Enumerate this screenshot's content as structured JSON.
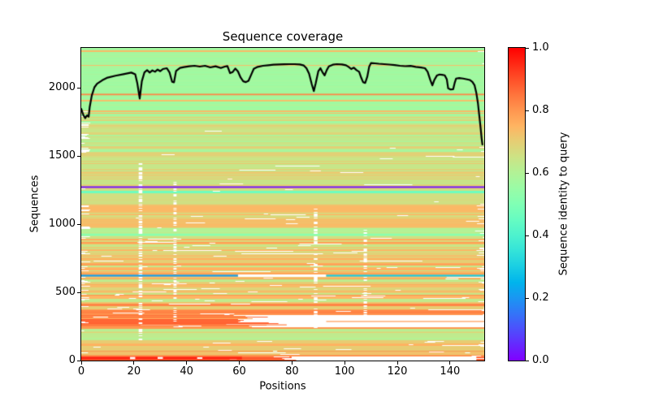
{
  "chart_data": {
    "type": "heatmap",
    "title": "Sequence coverage",
    "xlabel": "Positions",
    "ylabel": "Sequences",
    "xlim": [
      0,
      153
    ],
    "ylim": [
      0,
      2293
    ],
    "xticks": [
      0,
      20,
      40,
      60,
      80,
      100,
      120,
      140
    ],
    "yticks": [
      0,
      500,
      1000,
      1500,
      2000
    ],
    "grid": false,
    "colorbar": {
      "label": "Sequence identity to query",
      "ticks": [
        {
          "v": 1.0,
          "label": "1.0"
        },
        {
          "v": 0.8,
          "label": "0.8"
        },
        {
          "v": 0.6,
          "label": "0.6"
        },
        {
          "v": 0.4,
          "label": "0.4"
        },
        {
          "v": 0.2,
          "label": "0.2"
        },
        {
          "v": 0.0,
          "label": "0.0"
        }
      ]
    },
    "colormap_name": "rainbow_r",
    "colormap_stops": [
      [
        0.0,
        "#ff0000"
      ],
      [
        0.05,
        "#ff2814"
      ],
      [
        0.1,
        "#ff4f28"
      ],
      [
        0.15,
        "#ff743c"
      ],
      [
        0.2,
        "#ff964f"
      ],
      [
        0.25,
        "#ffb462"
      ],
      [
        0.3,
        "#e5ce74"
      ],
      [
        0.35,
        "#cce385"
      ],
      [
        0.4,
        "#b2f296"
      ],
      [
        0.45,
        "#99fca6"
      ],
      [
        0.5,
        "#80ffb4"
      ],
      [
        0.55,
        "#66fcc2"
      ],
      [
        0.6,
        "#4df2ce"
      ],
      [
        0.65,
        "#33e3d9"
      ],
      [
        0.7,
        "#1acee3"
      ],
      [
        0.75,
        "#00b4ec"
      ],
      [
        0.8,
        "#1a96f2"
      ],
      [
        0.85,
        "#3374f8"
      ],
      [
        0.9,
        "#4d4ffc"
      ],
      [
        0.95,
        "#6628fe"
      ],
      [
        1.0,
        "#8000ff"
      ]
    ],
    "coverage_line": {
      "color": "#000000",
      "width": 2.2,
      "points": [
        [
          0,
          1846
        ],
        [
          0.8,
          1800
        ],
        [
          1.5,
          1778
        ],
        [
          2.2,
          1798
        ],
        [
          2.8,
          1788
        ],
        [
          3.2,
          1858
        ],
        [
          4,
          1944
        ],
        [
          5,
          2004
        ],
        [
          6,
          2030
        ],
        [
          8,
          2056
        ],
        [
          10,
          2075
        ],
        [
          13,
          2089
        ],
        [
          16,
          2100
        ],
        [
          19,
          2112
        ],
        [
          20.5,
          2100
        ],
        [
          21.3,
          2032
        ],
        [
          22.2,
          1922
        ],
        [
          23,
          2048
        ],
        [
          24,
          2114
        ],
        [
          25,
          2130
        ],
        [
          26,
          2112
        ],
        [
          27,
          2128
        ],
        [
          28,
          2118
        ],
        [
          29,
          2134
        ],
        [
          30,
          2122
        ],
        [
          31,
          2138
        ],
        [
          32.5,
          2144
        ],
        [
          33.5,
          2114
        ],
        [
          34.5,
          2044
        ],
        [
          35.2,
          2040
        ],
        [
          36,
          2124
        ],
        [
          37.5,
          2146
        ],
        [
          39,
          2152
        ],
        [
          41,
          2158
        ],
        [
          43,
          2162
        ],
        [
          45,
          2156
        ],
        [
          47,
          2162
        ],
        [
          49,
          2150
        ],
        [
          51,
          2158
        ],
        [
          53,
          2146
        ],
        [
          54.5,
          2156
        ],
        [
          55.5,
          2160
        ],
        [
          56.5,
          2108
        ],
        [
          57.5,
          2116
        ],
        [
          58.5,
          2142
        ],
        [
          59.5,
          2120
        ],
        [
          60.5,
          2076
        ],
        [
          61.5,
          2048
        ],
        [
          62.5,
          2042
        ],
        [
          63.5,
          2052
        ],
        [
          64.5,
          2096
        ],
        [
          65.5,
          2140
        ],
        [
          67,
          2154
        ],
        [
          69,
          2162
        ],
        [
          71,
          2166
        ],
        [
          73,
          2170
        ],
        [
          75,
          2172
        ],
        [
          77,
          2173
        ],
        [
          79,
          2174
        ],
        [
          81,
          2174
        ],
        [
          83,
          2172
        ],
        [
          84.5,
          2164
        ],
        [
          85.5,
          2144
        ],
        [
          86.5,
          2104
        ],
        [
          87.5,
          2028
        ],
        [
          88.3,
          1976
        ],
        [
          89,
          2032
        ],
        [
          90,
          2122
        ],
        [
          90.8,
          2144
        ],
        [
          91.6,
          2114
        ],
        [
          92.4,
          2092
        ],
        [
          93.2,
          2130
        ],
        [
          94,
          2158
        ],
        [
          95.5,
          2170
        ],
        [
          97,
          2174
        ],
        [
          99,
          2172
        ],
        [
          100.5,
          2166
        ],
        [
          101.5,
          2154
        ],
        [
          102.5,
          2138
        ],
        [
          103.5,
          2148
        ],
        [
          104.5,
          2130
        ],
        [
          105.5,
          2118
        ],
        [
          106.3,
          2074
        ],
        [
          107,
          2042
        ],
        [
          107.8,
          2036
        ],
        [
          108.6,
          2082
        ],
        [
          109.3,
          2154
        ],
        [
          110,
          2182
        ],
        [
          111.5,
          2180
        ],
        [
          113,
          2177
        ],
        [
          115,
          2174
        ],
        [
          117,
          2171
        ],
        [
          119,
          2167
        ],
        [
          121,
          2162
        ],
        [
          123,
          2159
        ],
        [
          125,
          2161
        ],
        [
          127,
          2154
        ],
        [
          129,
          2149
        ],
        [
          130.5,
          2144
        ],
        [
          131.5,
          2118
        ],
        [
          132.5,
          2058
        ],
        [
          133.3,
          2018
        ],
        [
          134,
          2056
        ],
        [
          135,
          2090
        ],
        [
          136,
          2098
        ],
        [
          137,
          2096
        ],
        [
          138,
          2092
        ],
        [
          138.8,
          2062
        ],
        [
          139.3,
          1996
        ],
        [
          140.2,
          1988
        ],
        [
          141.2,
          1990
        ],
        [
          141.8,
          2038
        ],
        [
          142.3,
          2068
        ],
        [
          143.5,
          2072
        ],
        [
          145,
          2068
        ],
        [
          146.5,
          2062
        ],
        [
          147.5,
          2058
        ],
        [
          148.5,
          2044
        ],
        [
          149.3,
          2020
        ],
        [
          150,
          1962
        ],
        [
          150.6,
          1888
        ],
        [
          151.1,
          1800
        ],
        [
          151.6,
          1710
        ],
        [
          152,
          1630
        ],
        [
          152.3,
          1585
        ]
      ]
    },
    "msa": {
      "seed": 42,
      "bands": [
        {
          "y": [
            0,
            8
          ],
          "id": 0.18,
          "noise": 0.03,
          "altProb": 0,
          "altId": 0.2,
          "dash": 0.1,
          "left": 0,
          "right": 0
        },
        {
          "y": [
            8,
            30
          ],
          "id": 0.15,
          "noise": 0.04,
          "altProb": 0,
          "altId": 0.2,
          "dash": 0.3,
          "left": 0,
          "right": 0
        },
        {
          "y": [
            30,
            150
          ],
          "id": 0.27,
          "noise": 0.05,
          "altProb": 0.3,
          "altId": 0.21,
          "dash": 0.3,
          "left": 0.05,
          "right": 0.08
        },
        {
          "y": [
            150,
            245
          ],
          "id": 0.38,
          "noise": 0.02,
          "altProb": 0.05,
          "altId": 0.32,
          "dash": 0.1,
          "left": 0.03,
          "right": 0.05
        },
        {
          "y": [
            245,
            332
          ],
          "id": 0.16,
          "noise": 0.05,
          "altProb": 0.1,
          "altId": 0.22,
          "dash": 0.25,
          "left": 0.05,
          "right": 0
        },
        {
          "y": [
            332,
            420
          ],
          "id": 0.21,
          "noise": 0.04,
          "altProb": 0.12,
          "altId": 0.3,
          "dash": 0.35,
          "left": 0.08,
          "right": 0.1
        },
        {
          "y": [
            420,
            520
          ],
          "id": 0.24,
          "noise": 0.06,
          "altProb": 0.15,
          "altId": 0.35,
          "dash": 0.4,
          "left": 0.3,
          "right": 0.12
        },
        {
          "y": [
            520,
            615
          ],
          "id": 0.27,
          "noise": 0.06,
          "altProb": 0.2,
          "altId": 0.36,
          "dash": 0.25,
          "left": 0.15,
          "right": 0.12
        },
        {
          "y": [
            615,
            627
          ],
          "id": 0.3,
          "noise": 0.05,
          "altProb": 0,
          "altId": 0.3,
          "dash": 0.3,
          "left": 0,
          "right": 0
        },
        {
          "y": [
            627,
            900
          ],
          "id": 0.27,
          "noise": 0.06,
          "altProb": 0.15,
          "altId": 0.36,
          "dash": 0.28,
          "left": 0.12,
          "right": 0.15
        },
        {
          "y": [
            900,
            940
          ],
          "id": 0.4,
          "noise": 0.03,
          "altProb": 0.1,
          "altId": 0.33,
          "dash": 0.12,
          "left": 0.1,
          "right": 0.1
        },
        {
          "y": [
            940,
            1180
          ],
          "id": 0.3,
          "noise": 0.05,
          "altProb": 0.12,
          "altId": 0.38,
          "dash": 0.18,
          "left": 0.12,
          "right": 0.12
        },
        {
          "y": [
            1180,
            1250
          ],
          "id": 0.33,
          "noise": 0.04,
          "altProb": 0.2,
          "altId": 0.55,
          "dash": 0.15,
          "left": 0.08,
          "right": 0.15
        },
        {
          "y": [
            1250,
            1264
          ],
          "id": 0.33,
          "noise": 0.04,
          "altProb": 0,
          "altId": 0.3,
          "dash": 0.6,
          "left": 0.2,
          "right": 0.2
        },
        {
          "y": [
            1264,
            1280
          ],
          "id": 0.33,
          "noise": 0.03,
          "altProb": 0,
          "altId": 0.3,
          "dash": 0.1,
          "left": 0,
          "right": 0
        },
        {
          "y": [
            1280,
            1500
          ],
          "id": 0.32,
          "noise": 0.05,
          "altProb": 0.15,
          "altId": 0.4,
          "dash": 0.15,
          "left": 0.08,
          "right": 0.1
        },
        {
          "y": [
            1500,
            1790
          ],
          "id": 0.34,
          "noise": 0.04,
          "altProb": 0.4,
          "altId": 0.42,
          "dash": 0.14,
          "left": 0.2,
          "right": 0.08
        },
        {
          "y": [
            1790,
            2293
          ],
          "id": 0.43,
          "noise": 0.015,
          "altProb": 0.06,
          "altId": 0.26,
          "dash": 0.04,
          "left": 0.02,
          "right": 0.03
        }
      ],
      "white_regions": [
        {
          "y": [
            245,
            332
          ],
          "x": [
            64,
            153
          ],
          "jitter": 12
        },
        {
          "y": [
            616,
            629
          ],
          "x": [
            59.5,
            93
          ],
          "jitter": 0
        },
        {
          "y": [
            2,
            26
          ],
          "x": [
            79,
            150
          ],
          "jitter": 4
        }
      ],
      "gap_columns": [
        {
          "x": [
            21.8,
            23.2
          ],
          "y": [
            150,
            1460
          ],
          "p": 0.5
        },
        {
          "x": [
            35.0,
            36.2
          ],
          "y": [
            245,
            1320
          ],
          "p": 0.42
        },
        {
          "x": [
            88.3,
            89.7
          ],
          "y": [
            240,
            1110
          ],
          "p": 0.45
        },
        {
          "x": [
            107.2,
            108.5
          ],
          "y": [
            300,
            960
          ],
          "p": 0.4
        }
      ],
      "special_rows": [
        {
          "name": "query-identity-line-purple",
          "y": [
            1266,
            1278
          ],
          "x": [
            0,
            153
          ],
          "id": 0.97
        },
        {
          "name": "high-identity-line-blue-left",
          "y": [
            616,
            629
          ],
          "x": [
            0,
            59.5
          ],
          "id": 0.78
        },
        {
          "name": "high-identity-line-blue-right",
          "y": [
            616,
            629
          ],
          "x": [
            93,
            153
          ],
          "id": 0.7
        },
        {
          "name": "mint-identity-band",
          "y": [
            916,
            929
          ],
          "x": [
            0,
            153
          ],
          "id": 0.48
        },
        {
          "name": "salmon-stripe",
          "y": [
            1946,
            1957
          ],
          "x": [
            0,
            153
          ],
          "id": 0.18
        },
        {
          "name": "low-identity-red-band",
          "y": [
            8,
            28
          ],
          "x": [
            0,
            61
          ],
          "id": 0.05
        },
        {
          "name": "orange-cross-line-left",
          "y": [
            258,
            265
          ],
          "x": [
            0,
            78
          ],
          "id": 0.16
        },
        {
          "name": "orange-cross-line-right",
          "y": [
            283,
            290
          ],
          "x": [
            93,
            153
          ],
          "id": 0.2
        }
      ],
      "overlays_white": [
        {
          "y": [
            10,
            26
          ],
          "x": [
            18.5,
            20.5
          ]
        },
        {
          "y": [
            12,
            26
          ],
          "x": [
            29,
            31
          ]
        },
        {
          "y": [
            12,
            24
          ],
          "x": [
            44,
            46
          ]
        }
      ]
    }
  }
}
